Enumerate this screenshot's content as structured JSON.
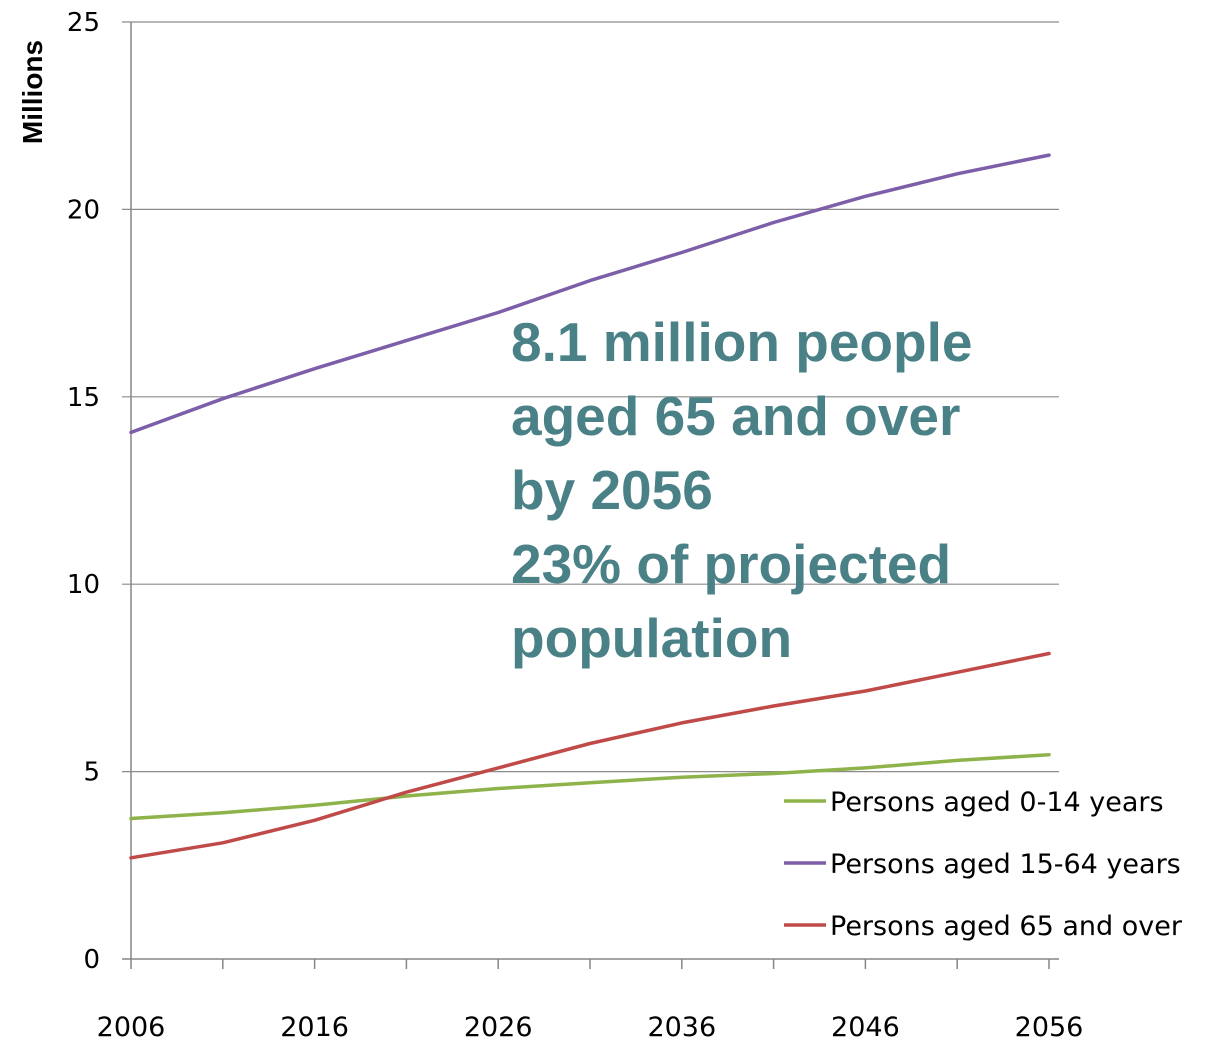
{
  "chart_data": {
    "type": "line",
    "title": "",
    "xlabel": "",
    "ylabel": "Millions",
    "xlim": [
      2006,
      2056
    ],
    "ylim": [
      0,
      25
    ],
    "x_ticks": [
      "2006",
      "2016",
      "2026",
      "2036",
      "2046",
      "2056"
    ],
    "y_ticks": [
      "0",
      "5",
      "10",
      "15",
      "20",
      "25"
    ],
    "grid": "horizontal",
    "legend_position": "bottom-right",
    "x": [
      2006,
      2011,
      2016,
      2021,
      2026,
      2031,
      2036,
      2041,
      2046,
      2051,
      2056
    ],
    "series": [
      {
        "name": "Persons aged 0-14 years",
        "color": "#8db34a",
        "values": [
          3.75,
          3.9,
          4.1,
          4.35,
          4.55,
          4.7,
          4.85,
          4.95,
          5.1,
          5.3,
          5.45
        ]
      },
      {
        "name": "Persons aged 15-64 years",
        "color": "#7d5ea8",
        "values": [
          14.05,
          14.95,
          15.75,
          16.5,
          17.25,
          18.1,
          18.85,
          19.65,
          20.35,
          20.95,
          21.45
        ]
      },
      {
        "name": "Persons aged 65 and over",
        "color": "#bf4a48",
        "values": [
          2.7,
          3.1,
          3.7,
          4.45,
          5.1,
          5.75,
          6.3,
          6.75,
          7.15,
          7.65,
          8.15
        ]
      }
    ],
    "annotation_lines": [
      "8.1 million people",
      "aged 65 and over",
      "by 2056",
      "23% of projected",
      "population"
    ]
  }
}
